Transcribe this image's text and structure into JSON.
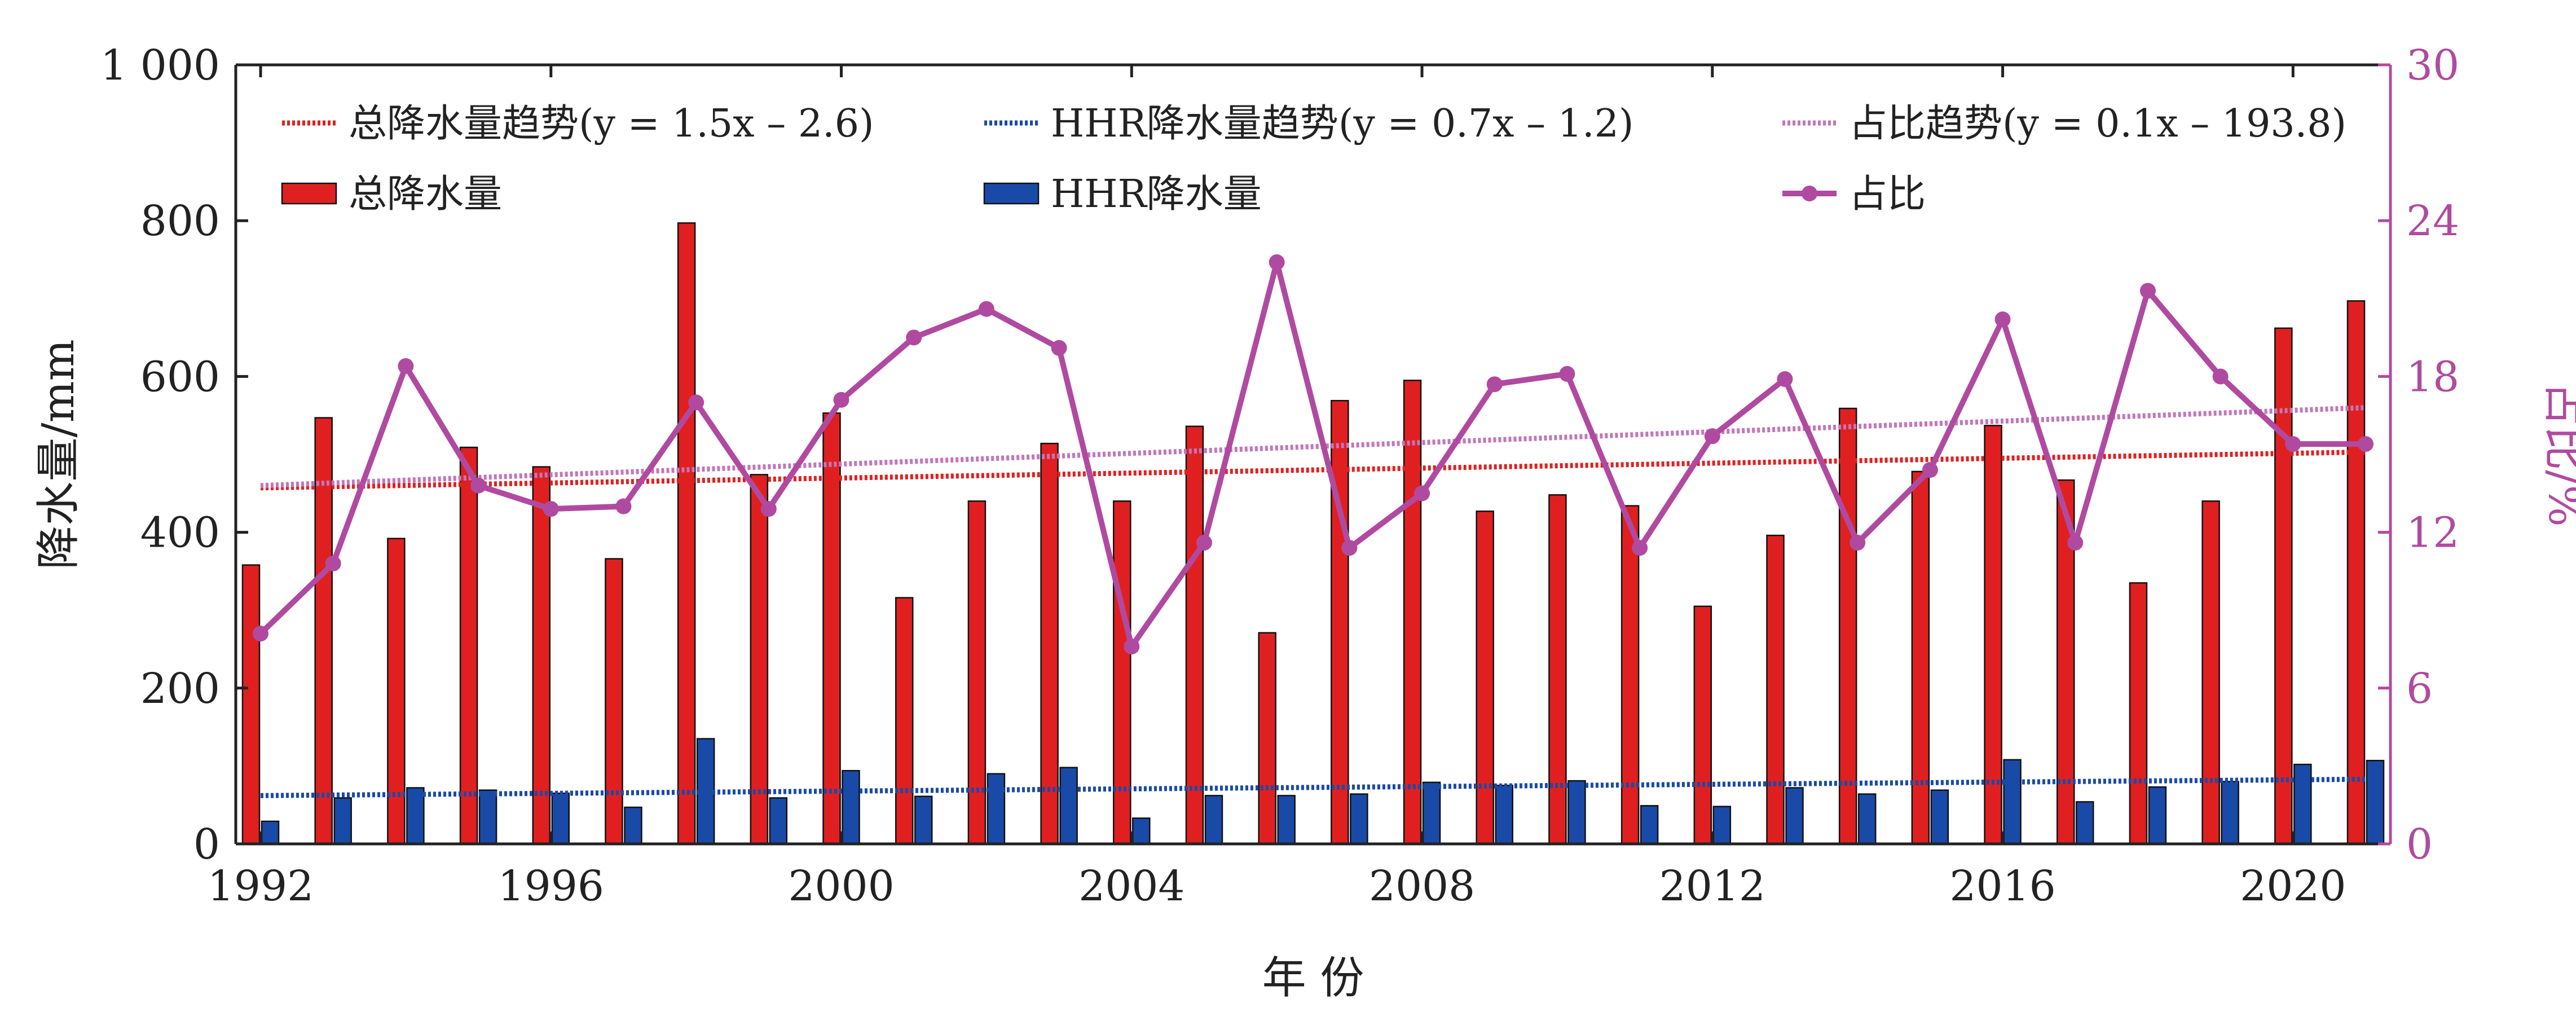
{
  "chart_data": {
    "type": "bar",
    "xlabel": "年 份",
    "ylabel": "降水量/mm",
    "y2label": "占比/%",
    "x_ticks": [
      "1992",
      "1996",
      "2000",
      "2004",
      "2008",
      "2012",
      "2016",
      "2020"
    ],
    "y_ticks": [
      "0",
      "200",
      "400",
      "600",
      "800",
      "1 000"
    ],
    "y2_ticks": [
      "0",
      "6",
      "12",
      "18",
      "24",
      "30"
    ],
    "ylim": [
      0,
      1000
    ],
    "y2lim": [
      0,
      30
    ],
    "years": [
      1992,
      1993,
      1994,
      1995,
      1996,
      1997,
      1998,
      1999,
      2000,
      2001,
      2002,
      2003,
      2004,
      2005,
      2006,
      2007,
      2008,
      2009,
      2010,
      2011,
      2012,
      2013,
      2014,
      2015,
      2016,
      2017,
      2018,
      2019,
      2020,
      2021
    ],
    "series": [
      {
        "name": "总降水量",
        "kind": "bar",
        "axis": "left",
        "color": "#e02020",
        "values": [
          358,
          547,
          392,
          509,
          484,
          366,
          797,
          474,
          553,
          316,
          440,
          514,
          440,
          536,
          271,
          569,
          595,
          427,
          448,
          434,
          305,
          396,
          559,
          478,
          537,
          467,
          335,
          440,
          662,
          697
        ]
      },
      {
        "name": "HHR降水量",
        "kind": "bar",
        "axis": "left",
        "color": "#1a4aa8",
        "values": [
          29,
          59,
          72,
          69,
          65,
          47,
          135,
          59,
          94,
          61,
          90,
          98,
          33,
          62,
          62,
          64,
          79,
          75,
          81,
          49,
          48,
          72,
          64,
          69,
          108,
          54,
          73,
          80,
          102,
          107
        ]
      },
      {
        "name": "占比",
        "kind": "line",
        "axis": "right",
        "color": "#b04aa0",
        "values": [
          8.1,
          10.8,
          18.4,
          13.8,
          12.9,
          13.0,
          17.0,
          12.9,
          17.1,
          19.5,
          20.6,
          19.1,
          7.6,
          11.6,
          22.4,
          11.4,
          13.5,
          17.7,
          18.1,
          11.4,
          15.7,
          17.9,
          11.6,
          14.4,
          20.2,
          11.6,
          21.3,
          18.0,
          15.4,
          15.4
        ]
      }
    ],
    "trends": [
      {
        "name": "总降水量趋势",
        "equation": "(y = 1.5x – 2.6)",
        "axis": "left",
        "color": "#e02020",
        "start": [
          1992,
          457
        ],
        "end": [
          2021,
          503
        ]
      },
      {
        "name": "HHR降水量趋势",
        "equation": "(y = 0.7x – 1.2)",
        "axis": "left",
        "color": "#1a4aa8",
        "start": [
          1992,
          62
        ],
        "end": [
          2021,
          83
        ]
      },
      {
        "name": "占比趋势",
        "equation": "(y = 0.1x – 193.8)",
        "axis": "right",
        "color": "#c276bb",
        "start": [
          1992,
          13.8
        ],
        "end": [
          2021,
          16.8
        ]
      }
    ],
    "legend": {
      "placement": "top",
      "items": [
        {
          "label": "总降水量趋势",
          "equation": "(y = 1.5x – 2.6)",
          "marker": "dotted-line",
          "color": "#e02020"
        },
        {
          "label": "HHR降水量趋势",
          "equation": "(y = 0.7x – 1.2)",
          "marker": "dotted-line",
          "color": "#1a4aa8"
        },
        {
          "label": "占比趋势",
          "equation": "(y = 0.1x – 193.8)",
          "marker": "dotted-line",
          "color": "#c276bb"
        },
        {
          "label": "总降水量",
          "marker": "bar",
          "color": "#e02020"
        },
        {
          "label": "HHR降水量",
          "marker": "bar",
          "color": "#1a4aa8"
        },
        {
          "label": "占比",
          "marker": "line-dot",
          "color": "#b04aa0"
        }
      ]
    },
    "grid": false,
    "colors": {
      "axis": "#222222",
      "right_axis": "#b04aa0"
    }
  }
}
